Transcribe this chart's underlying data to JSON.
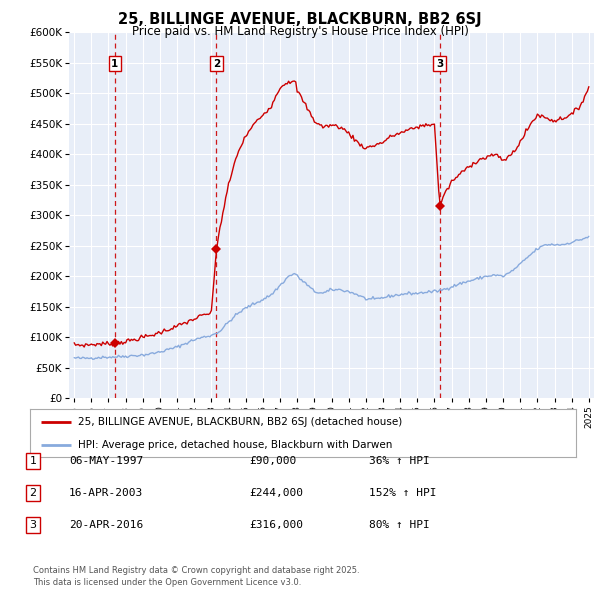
{
  "title": "25, BILLINGE AVENUE, BLACKBURN, BB2 6SJ",
  "subtitle": "Price paid vs. HM Land Registry's House Price Index (HPI)",
  "sale_info": [
    {
      "num": "1",
      "date": "06-MAY-1997",
      "price": "£90,000",
      "change": "36% ↑ HPI"
    },
    {
      "num": "2",
      "date": "16-APR-2003",
      "price": "£244,000",
      "change": "152% ↑ HPI"
    },
    {
      "num": "3",
      "date": "20-APR-2016",
      "price": "£316,000",
      "change": "80% ↑ HPI"
    }
  ],
  "vline_years": [
    1997.37,
    2003.29,
    2016.3
  ],
  "sale_prices": [
    90000,
    244000,
    316000
  ],
  "sale_labels": [
    "1",
    "2",
    "3"
  ],
  "legend_line1": "25, BILLINGE AVENUE, BLACKBURN, BB2 6SJ (detached house)",
  "legend_line2": "HPI: Average price, detached house, Blackburn with Darwen",
  "footer": "Contains HM Land Registry data © Crown copyright and database right 2025.\nThis data is licensed under the Open Government Licence v3.0.",
  "property_color": "#cc0000",
  "hpi_color": "#88aadd",
  "vline_color": "#cc0000",
  "background_color": "#e8eef8",
  "ylim": [
    0,
    600000
  ],
  "xlim_min": 1994.7,
  "xlim_max": 2025.3
}
